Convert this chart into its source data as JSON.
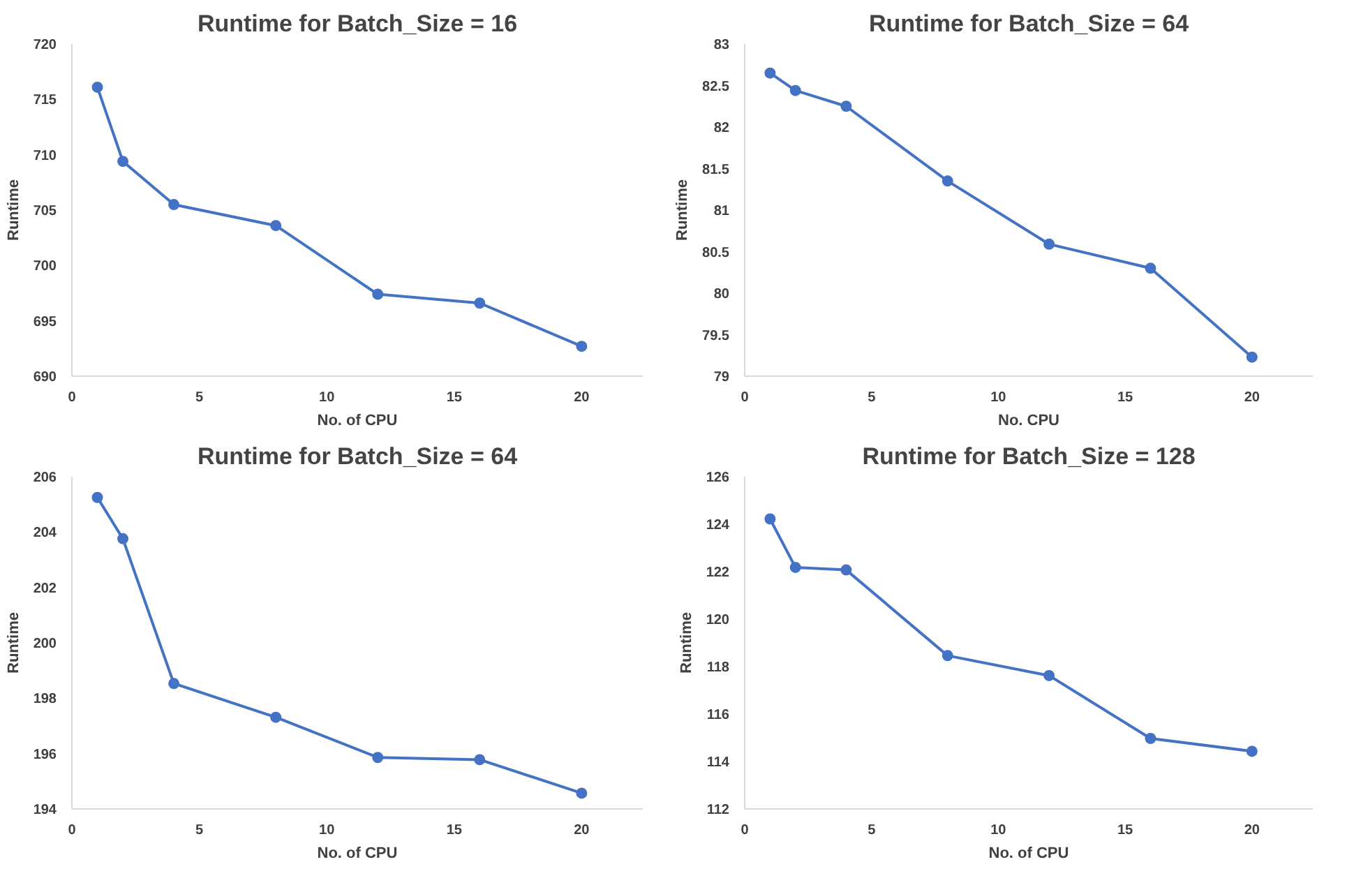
{
  "chart_data": [
    {
      "type": "line",
      "title": "Runtime for Batch_Size = 16",
      "xlabel": "No. of CPU",
      "ylabel": "Runtime",
      "x": [
        1,
        2,
        4,
        8,
        12,
        16,
        20
      ],
      "xlim": [
        0,
        22.4
      ],
      "xticks": [
        0,
        5,
        10,
        15,
        20
      ],
      "ylim": [
        690,
        720
      ],
      "yticks": [
        690,
        695,
        700,
        705,
        710,
        715,
        720
      ],
      "grid": false,
      "marker": "circle",
      "line_style": "solid",
      "series": [
        {
          "color": "#4472c4",
          "values": [
            716.1,
            709.4,
            705.5,
            703.6,
            697.4,
            696.6,
            692.7
          ]
        }
      ]
    },
    {
      "type": "line",
      "title": "Runtime for Batch_Size = 64",
      "xlabel": "No. CPU",
      "ylabel": "Runtime",
      "x": [
        1,
        2,
        4,
        8,
        12,
        16,
        20
      ],
      "xlim": [
        0,
        22.4
      ],
      "xticks": [
        0,
        5,
        10,
        15,
        20
      ],
      "ylim": [
        79,
        83
      ],
      "yticks": [
        79,
        79.5,
        80,
        80.5,
        81,
        81.5,
        82,
        82.5,
        83
      ],
      "grid": false,
      "marker": "circle",
      "line_style": "solid",
      "series": [
        {
          "color": "#4472c4",
          "values": [
            82.65,
            82.44,
            82.25,
            81.35,
            80.59,
            80.3,
            79.23
          ]
        }
      ]
    },
    {
      "type": "line",
      "title": "Runtime for Batch_Size = 64",
      "xlabel": "No. of CPU",
      "ylabel": "Runtime",
      "x": [
        1,
        2,
        4,
        8,
        12,
        16,
        20
      ],
      "xlim": [
        0,
        22.4
      ],
      "xticks": [
        0,
        5,
        10,
        15,
        20
      ],
      "ylim": [
        194,
        206
      ],
      "yticks": [
        194,
        196,
        198,
        200,
        202,
        204,
        206
      ],
      "grid": false,
      "marker": "circle",
      "line_style": "solid",
      "series": [
        {
          "color": "#4472c4",
          "values": [
            205.25,
            203.76,
            198.53,
            197.31,
            195.86,
            195.78,
            194.57
          ]
        }
      ]
    },
    {
      "type": "line",
      "title": "Runtime for Batch_Size = 128",
      "xlabel": "No. of CPU",
      "ylabel": "Runtime",
      "x": [
        1,
        2,
        4,
        8,
        12,
        16,
        20
      ],
      "xlim": [
        0,
        22.4
      ],
      "xticks": [
        0,
        5,
        10,
        15,
        20
      ],
      "ylim": [
        112,
        126
      ],
      "yticks": [
        112,
        114,
        116,
        118,
        120,
        122,
        124,
        126
      ],
      "grid": false,
      "marker": "circle",
      "line_style": "solid",
      "series": [
        {
          "color": "#4472c4",
          "values": [
            124.22,
            122.18,
            122.07,
            118.46,
            117.62,
            114.97,
            114.43
          ]
        }
      ]
    }
  ]
}
